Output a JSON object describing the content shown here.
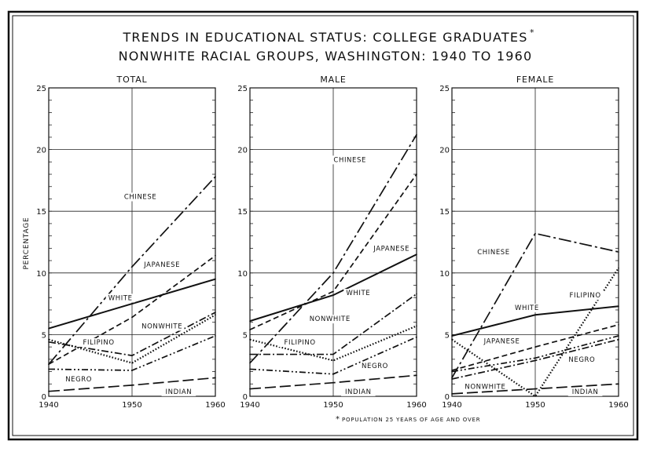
{
  "title_line1": "TRENDS IN EDUCATIONAL STATUS: COLLEGE GRADUATES",
  "title_asterisk": "*",
  "title_line2": "NONWHITE RACIAL GROUPS, WASHINGTON:  1940 TO 1960",
  "ylabel": "PERCENTAGE",
  "footnote": "POPULATION 25 YEARS OF AGE AND OVER",
  "footnote_mark": "*",
  "colors": {
    "ink": "#111111",
    "paper": "#ffffff"
  },
  "chart_data": [
    {
      "type": "line",
      "title": "TOTAL",
      "x": [
        1940,
        1950,
        1960
      ],
      "xticks": [
        "1940",
        "1950",
        "1960"
      ],
      "ylim": [
        0,
        25
      ],
      "yticks": [
        "0",
        "5",
        "10",
        "15",
        "20",
        "25"
      ],
      "grid": true,
      "series": [
        {
          "name": "CHINESE",
          "style": "long-dash-dot",
          "values": [
            2.6,
            10.5,
            17.8
          ]
        },
        {
          "name": "JAPANESE",
          "style": "dashed",
          "values": [
            2.6,
            6.4,
            11.4
          ]
        },
        {
          "name": "WHITE",
          "style": "solid",
          "values": [
            5.5,
            7.5,
            9.5
          ]
        },
        {
          "name": "NONWHITE",
          "style": "dash-dot",
          "values": [
            4.4,
            3.3,
            6.8
          ]
        },
        {
          "name": "FILIPINO",
          "style": "dotted",
          "values": [
            4.6,
            2.7,
            6.6
          ]
        },
        {
          "name": "NEGRO",
          "style": "dash-dot-dot",
          "values": [
            2.2,
            2.1,
            4.9
          ]
        },
        {
          "name": "INDIAN",
          "style": "long-dash",
          "values": [
            0.4,
            0.9,
            1.5
          ]
        }
      ]
    },
    {
      "type": "line",
      "title": "MALE",
      "x": [
        1940,
        1950,
        1960
      ],
      "xticks": [
        "1940",
        "1950",
        "1960"
      ],
      "ylim": [
        0,
        25
      ],
      "yticks": [
        "0",
        "5",
        "10",
        "15",
        "20",
        "25"
      ],
      "grid": true,
      "series": [
        {
          "name": "CHINESE",
          "style": "long-dash-dot",
          "values": [
            2.7,
            10.0,
            21.2
          ]
        },
        {
          "name": "JAPANESE",
          "style": "dashed",
          "values": [
            5.4,
            8.5,
            18.0
          ]
        },
        {
          "name": "WHITE",
          "style": "solid",
          "values": [
            6.1,
            8.2,
            11.5
          ]
        },
        {
          "name": "NONWHITE",
          "style": "dash-dot",
          "values": [
            3.4,
            3.4,
            8.3
          ]
        },
        {
          "name": "FILIPINO",
          "style": "dotted",
          "values": [
            4.6,
            2.9,
            5.7
          ]
        },
        {
          "name": "NEGRO",
          "style": "dash-dot-dot",
          "values": [
            2.2,
            1.8,
            4.8
          ]
        },
        {
          "name": "INDIAN",
          "style": "long-dash",
          "values": [
            0.6,
            1.1,
            1.7
          ]
        }
      ]
    },
    {
      "type": "line",
      "title": "FEMALE",
      "x": [
        1940,
        1950,
        1960
      ],
      "xticks": [
        "1940",
        "1950",
        "1960"
      ],
      "ylim": [
        0,
        25
      ],
      "yticks": [
        "0",
        "5",
        "10",
        "15",
        "20",
        "25"
      ],
      "grid": true,
      "series": [
        {
          "name": "CHINESE",
          "style": "long-dash-dot",
          "values": [
            1.5,
            13.2,
            11.7
          ]
        },
        {
          "name": "FILIPINO",
          "style": "dotted",
          "values": [
            4.6,
            0.0,
            10.4
          ]
        },
        {
          "name": "WHITE",
          "style": "solid",
          "values": [
            4.9,
            6.6,
            7.3
          ]
        },
        {
          "name": "JAPANESE",
          "style": "dashed",
          "values": [
            2.1,
            4.0,
            5.8
          ]
        },
        {
          "name": "NEGRO",
          "style": "dash-dot-dot",
          "values": [
            2.0,
            3.1,
            4.9
          ]
        },
        {
          "name": "NONWHITE",
          "style": "dash-dot",
          "values": [
            1.4,
            2.9,
            4.6
          ]
        },
        {
          "name": "INDIAN",
          "style": "long-dash",
          "values": [
            0.2,
            0.6,
            1.0
          ]
        }
      ]
    }
  ]
}
